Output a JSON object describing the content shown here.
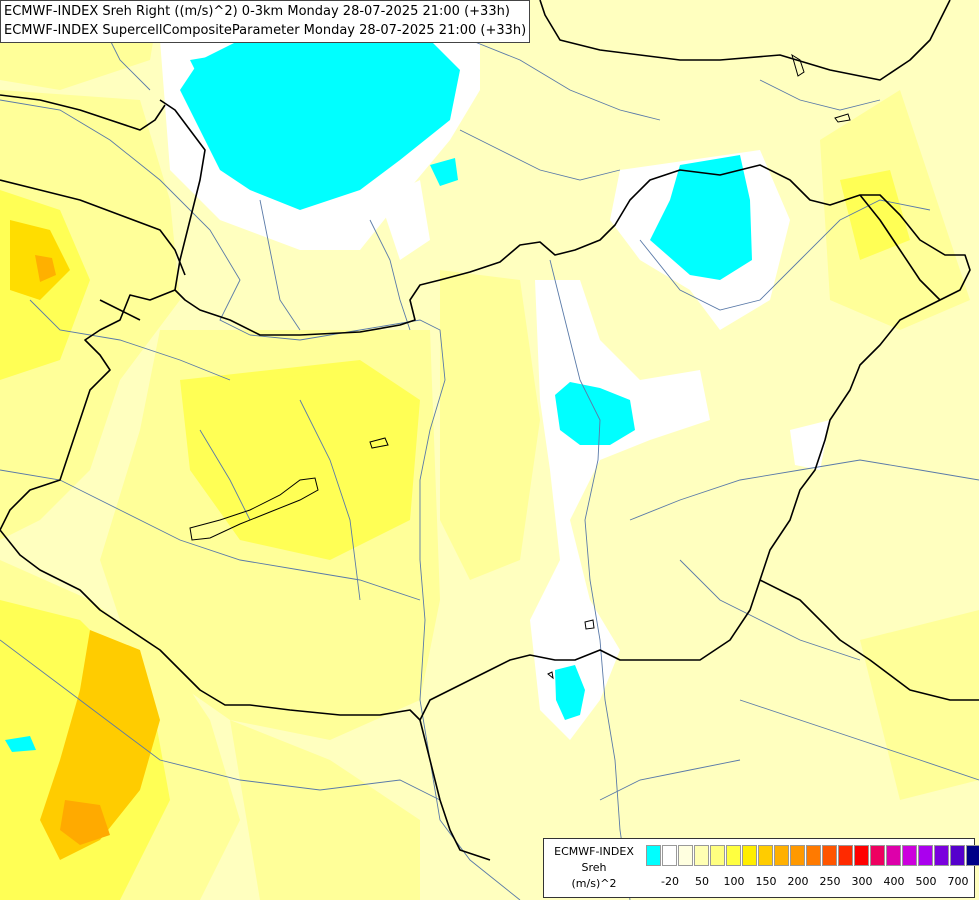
{
  "header": {
    "line1": "ECMWF-INDEX Sreh Right ((m/s)^2) 0-3km Monday 28-07-2025 21:00 (+33h)",
    "line2": "ECMWF-INDEX SupercellCompositeParameter Monday 28-07-2025 21:00 (+33h)"
  },
  "legend": {
    "source": "ECMWF-INDEX",
    "parameter": "Sreh",
    "unit": "(m/s)^2",
    "colors": [
      "#00ffff",
      "#ffffff",
      "#ffffe0",
      "#ffffb3",
      "#ffff80",
      "#ffff40",
      "#ffee00",
      "#ffcc00",
      "#ffb000",
      "#ff9900",
      "#ff7a00",
      "#ff5500",
      "#ff2a00",
      "#ff0000",
      "#ee0060",
      "#dd00aa",
      "#cc00dd",
      "#aa00ee",
      "#7a00dd",
      "#5500cc",
      "#000088"
    ],
    "ticks": [
      {
        "label": "-20",
        "slot": 1
      },
      {
        "label": "50",
        "slot": 3
      },
      {
        "label": "100",
        "slot": 5
      },
      {
        "label": "150",
        "slot": 7
      },
      {
        "label": "200",
        "slot": 9
      },
      {
        "label": "250",
        "slot": 11
      },
      {
        "label": "300",
        "slot": 13
      },
      {
        "label": "400",
        "slot": 15
      },
      {
        "label": "500",
        "slot": 17
      },
      {
        "label": "700",
        "slot": 19
      }
    ]
  }
}
